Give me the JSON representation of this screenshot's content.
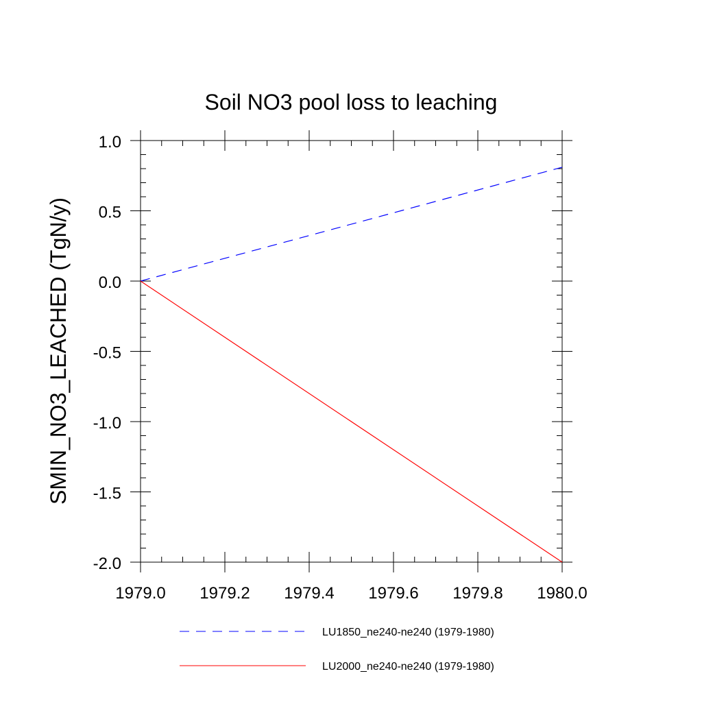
{
  "chart_data": {
    "type": "line",
    "title": "Soil NO3 pool loss to leaching",
    "xlabel": "",
    "ylabel": "SMIN_NO3_LEACHED  (TgN/y)",
    "xlim": [
      1979.0,
      1980.0
    ],
    "ylim": [
      -2.0,
      1.0
    ],
    "xticks": [
      1979.0,
      1979.2,
      1979.4,
      1979.6,
      1979.8,
      1980.0
    ],
    "xtick_labels": [
      "1979.0",
      "1979.2",
      "1979.4",
      "1979.6",
      "1979.8",
      "1980.0"
    ],
    "yticks": [
      -2.0,
      -1.5,
      -1.0,
      -0.5,
      0.0,
      0.5,
      1.0
    ],
    "ytick_labels": [
      "-2.0",
      "-1.5",
      "-1.0",
      "-0.5",
      "0.0",
      "0.5",
      "1.0"
    ],
    "grid": false,
    "legend_position": "bottom",
    "series": [
      {
        "name": "LU1850_ne240-ne240 (1979-1980)",
        "color": "#0000ff",
        "dash": "dashed",
        "x": [
          1979.0,
          1980.0
        ],
        "y": [
          0.0,
          0.81
        ]
      },
      {
        "name": "LU2000_ne240-ne240 (1979-1980)",
        "color": "#ff0000",
        "dash": "solid",
        "x": [
          1979.0,
          1980.0
        ],
        "y": [
          0.0,
          -2.0
        ]
      }
    ]
  }
}
